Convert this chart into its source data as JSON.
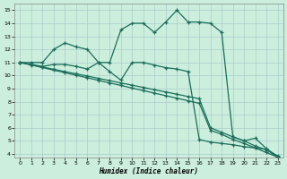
{
  "bg_color": "#cceedd",
  "grid_color": "#aacccc",
  "line_color": "#1a6e5a",
  "xlim": [
    -0.5,
    23.5
  ],
  "ylim": [
    3.7,
    15.5
  ],
  "xlabel": "Humidex (Indice chaleur)",
  "xticks": [
    0,
    1,
    2,
    3,
    4,
    5,
    6,
    7,
    8,
    9,
    10,
    11,
    12,
    13,
    14,
    15,
    16,
    17,
    18,
    19,
    20,
    21,
    22,
    23
  ],
  "yticks": [
    4,
    5,
    6,
    7,
    8,
    9,
    10,
    11,
    12,
    13,
    14,
    15
  ],
  "curve_peak_x": [
    0,
    1,
    2,
    3,
    4,
    5,
    6,
    7,
    8,
    9,
    10,
    11,
    12,
    13,
    14,
    15,
    16,
    17,
    18,
    19,
    20,
    21,
    22,
    23
  ],
  "curve_peak_y": [
    11,
    11,
    11,
    12,
    12.5,
    12.2,
    12,
    11,
    11,
    13.5,
    14,
    14,
    13.3,
    14.1,
    15,
    14.1,
    14.1,
    14,
    13.3,
    5.3,
    5.0,
    5.2,
    4.4,
    3.8
  ],
  "line_straight1_x": [
    0,
    1,
    2,
    3,
    4,
    5,
    6,
    7,
    8,
    9,
    10,
    11,
    12,
    13,
    14,
    15,
    16,
    17,
    18,
    19,
    20,
    21,
    22,
    23
  ],
  "line_straight1_y": [
    11,
    10.83,
    10.65,
    10.48,
    10.3,
    10.13,
    9.96,
    9.78,
    9.61,
    9.43,
    9.26,
    9.09,
    8.91,
    8.74,
    8.57,
    8.39,
    8.22,
    6.0,
    5.65,
    5.3,
    5.0,
    4.6,
    4.3,
    3.85
  ],
  "line_straight2_x": [
    0,
    1,
    2,
    3,
    4,
    5,
    6,
    7,
    8,
    9,
    10,
    11,
    12,
    13,
    14,
    15,
    16,
    17,
    18,
    19,
    20,
    21,
    22,
    23
  ],
  "line_straight2_y": [
    11,
    10.8,
    10.61,
    10.41,
    10.22,
    10.02,
    9.83,
    9.63,
    9.43,
    9.24,
    9.04,
    8.85,
    8.65,
    8.46,
    8.26,
    8.07,
    7.87,
    5.8,
    5.5,
    5.1,
    4.8,
    4.45,
    4.1,
    3.75
  ],
  "jagged_x": [
    0,
    1,
    2,
    3,
    4,
    5,
    6,
    7,
    8,
    9,
    10,
    11,
    12,
    13,
    14,
    15,
    16,
    17,
    18,
    19,
    20,
    21,
    22,
    23
  ],
  "jagged_y": [
    11,
    10.85,
    10.7,
    10.85,
    10.85,
    10.7,
    10.5,
    11,
    10.3,
    9.65,
    11,
    11,
    10.8,
    10.6,
    10.5,
    10.3,
    5.1,
    4.9,
    4.8,
    4.7,
    4.55,
    4.45,
    4.35,
    3.7
  ]
}
